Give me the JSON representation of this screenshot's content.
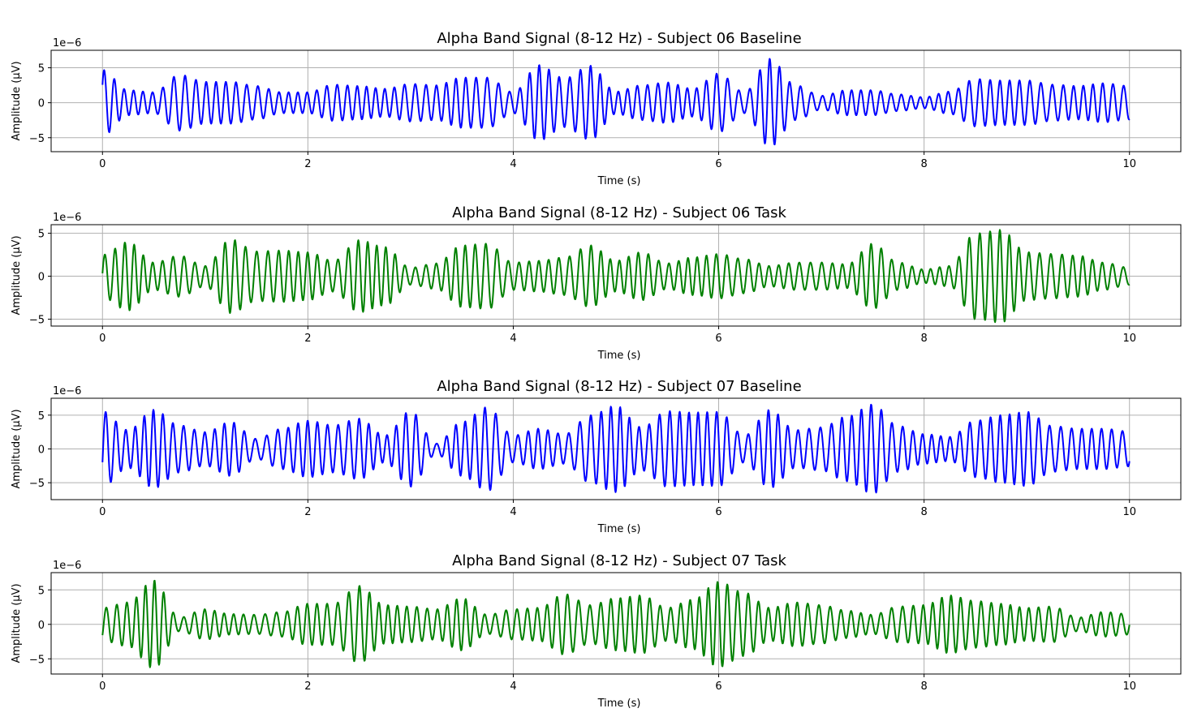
{
  "chart_data": [
    {
      "type": "line",
      "title": "Alpha Band Signal (8-12 Hz) - Subject 06 Baseline",
      "xlabel": "Time (s)",
      "ylabel": "Amplitude (µV)",
      "y_offset_label": "1e−6",
      "xlim": [
        -0.5,
        10.5
      ],
      "ylim": [
        -7.0,
        7.5
      ],
      "x_ticks": [
        0,
        2,
        4,
        6,
        8,
        10
      ],
      "y_ticks": [
        -5,
        0,
        5
      ],
      "grid": true,
      "color": "#0000ff",
      "series": [
        {
          "x": [
            0,
            0.25,
            0.5,
            0.75,
            1,
            1.25,
            1.5,
            1.75,
            2,
            2.25,
            2.5,
            2.75,
            3,
            3.25,
            3.5,
            3.75,
            4,
            4.25,
            4.5,
            4.75,
            5,
            5.25,
            5.5,
            5.75,
            6,
            6.25,
            6.5,
            6.75,
            7,
            7.25,
            7.5,
            7.75,
            8,
            8.25,
            8.5,
            8.75,
            9,
            9.25,
            9.5,
            9.75,
            10
          ],
          "envelope": [
            4.7,
            1.8,
            1.5,
            4.0,
            3.0,
            3.0,
            2.4,
            1.5,
            1.5,
            2.6,
            2.4,
            2.0,
            2.7,
            2.5,
            3.6,
            3.6,
            1.5,
            5.4,
            3.5,
            5.3,
            1.6,
            2.5,
            2.9,
            2.0,
            4.2,
            1.5,
            6.3,
            2.5,
            1.0,
            1.8,
            1.8,
            1.2,
            0.8,
            1.6,
            3.4,
            3.2,
            3.2,
            2.6,
            2.4,
            2.8,
            2.4
          ]
        }
      ]
    },
    {
      "type": "line",
      "title": "Alpha Band Signal (8-12 Hz) - Subject 06 Task",
      "xlabel": "Time (s)",
      "ylabel": "Amplitude (µV)",
      "y_offset_label": "1e−6",
      "xlim": [
        -0.5,
        10.5
      ],
      "ylim": [
        -5.8,
        6.0
      ],
      "x_ticks": [
        0,
        2,
        4,
        6,
        8,
        10
      ],
      "y_ticks": [
        -5,
        0,
        5
      ],
      "grid": true,
      "color": "#008000",
      "series": [
        {
          "x": [
            0,
            0.25,
            0.5,
            0.75,
            1,
            1.25,
            1.5,
            1.75,
            2,
            2.25,
            2.5,
            2.75,
            3,
            3.25,
            3.5,
            3.75,
            4,
            4.25,
            4.5,
            4.75,
            5,
            5.25,
            5.5,
            5.75,
            6,
            6.25,
            6.5,
            6.75,
            7,
            7.25,
            7.5,
            7.75,
            8,
            8.25,
            8.5,
            8.75,
            9,
            9.25,
            9.5,
            9.75,
            10
          ],
          "envelope": [
            2.5,
            4.0,
            1.6,
            2.4,
            1.2,
            4.3,
            2.9,
            3.0,
            2.8,
            1.8,
            4.2,
            3.4,
            1.0,
            1.5,
            3.6,
            3.8,
            1.6,
            1.8,
            2.2,
            3.6,
            1.8,
            2.8,
            1.5,
            2.2,
            2.6,
            2.0,
            1.2,
            1.6,
            1.6,
            1.4,
            3.8,
            1.6,
            0.8,
            1.2,
            5.0,
            5.4,
            2.8,
            2.6,
            2.4,
            1.6,
            1.0
          ]
        }
      ]
    },
    {
      "type": "line",
      "title": "Alpha Band Signal (8-12 Hz) - Subject 07 Baseline",
      "xlabel": "Time (s)",
      "ylabel": "Amplitude (µV)",
      "y_offset_label": "1e−6",
      "xlim": [
        -0.5,
        10.5
      ],
      "ylim": [
        -7.5,
        7.5
      ],
      "x_ticks": [
        0,
        2,
        4,
        6,
        8,
        10
      ],
      "y_ticks": [
        -5,
        0,
        5
      ],
      "grid": true,
      "color": "#0000ff",
      "series": [
        {
          "x": [
            0,
            0.25,
            0.5,
            0.75,
            1,
            1.25,
            1.5,
            1.75,
            2,
            2.25,
            2.5,
            2.75,
            3,
            3.25,
            3.5,
            3.75,
            4,
            4.25,
            4.5,
            4.75,
            5,
            5.25,
            5.5,
            5.75,
            6,
            6.25,
            6.5,
            6.75,
            7,
            7.25,
            7.5,
            7.75,
            8,
            8.25,
            8.5,
            8.75,
            9,
            9.25,
            9.5,
            9.75,
            10
          ],
          "envelope": [
            5.6,
            2.8,
            5.8,
            3.5,
            2.5,
            4.0,
            1.5,
            3.0,
            4.2,
            3.5,
            4.5,
            2.0,
            5.6,
            0.8,
            4.0,
            6.2,
            2.0,
            3.0,
            2.2,
            5.0,
            6.4,
            3.2,
            5.6,
            5.4,
            5.5,
            2.0,
            5.8,
            2.8,
            3.2,
            4.8,
            6.6,
            3.4,
            2.2,
            1.8,
            4.2,
            5.0,
            5.5,
            3.4,
            3.0,
            3.0,
            2.6
          ]
        }
      ]
    },
    {
      "type": "line",
      "title": "Alpha Band Signal (8-12 Hz) - Subject 07 Task",
      "xlabel": "Time (s)",
      "ylabel": "Amplitude (µV)",
      "y_offset_label": "1e−6",
      "xlim": [
        -0.5,
        10.5
      ],
      "ylim": [
        -7.2,
        7.5
      ],
      "x_ticks": [
        0,
        2,
        4,
        6,
        8,
        10
      ],
      "y_ticks": [
        -5,
        0,
        5
      ],
      "grid": true,
      "color": "#008000",
      "series": [
        {
          "x": [
            0,
            0.25,
            0.5,
            0.75,
            1,
            1.25,
            1.5,
            1.75,
            2,
            2.25,
            2.5,
            2.75,
            3,
            3.25,
            3.5,
            3.75,
            4,
            4.25,
            4.5,
            4.75,
            5,
            5.25,
            5.5,
            5.75,
            6,
            6.25,
            6.5,
            6.75,
            7,
            7.25,
            7.5,
            7.75,
            8,
            8.25,
            8.5,
            8.75,
            9,
            9.25,
            9.5,
            9.75,
            10
          ],
          "envelope": [
            2.4,
            3.2,
            6.4,
            1.0,
            2.2,
            1.5,
            1.4,
            1.8,
            3.0,
            3.0,
            5.6,
            2.8,
            2.6,
            2.2,
            3.8,
            1.4,
            2.2,
            2.4,
            4.4,
            2.8,
            3.8,
            4.2,
            2.4,
            3.6,
            6.2,
            4.6,
            2.4,
            3.2,
            2.8,
            2.0,
            1.4,
            2.6,
            2.8,
            4.2,
            3.4,
            3.0,
            2.4,
            2.6,
            1.0,
            1.8,
            1.5
          ]
        }
      ]
    }
  ]
}
